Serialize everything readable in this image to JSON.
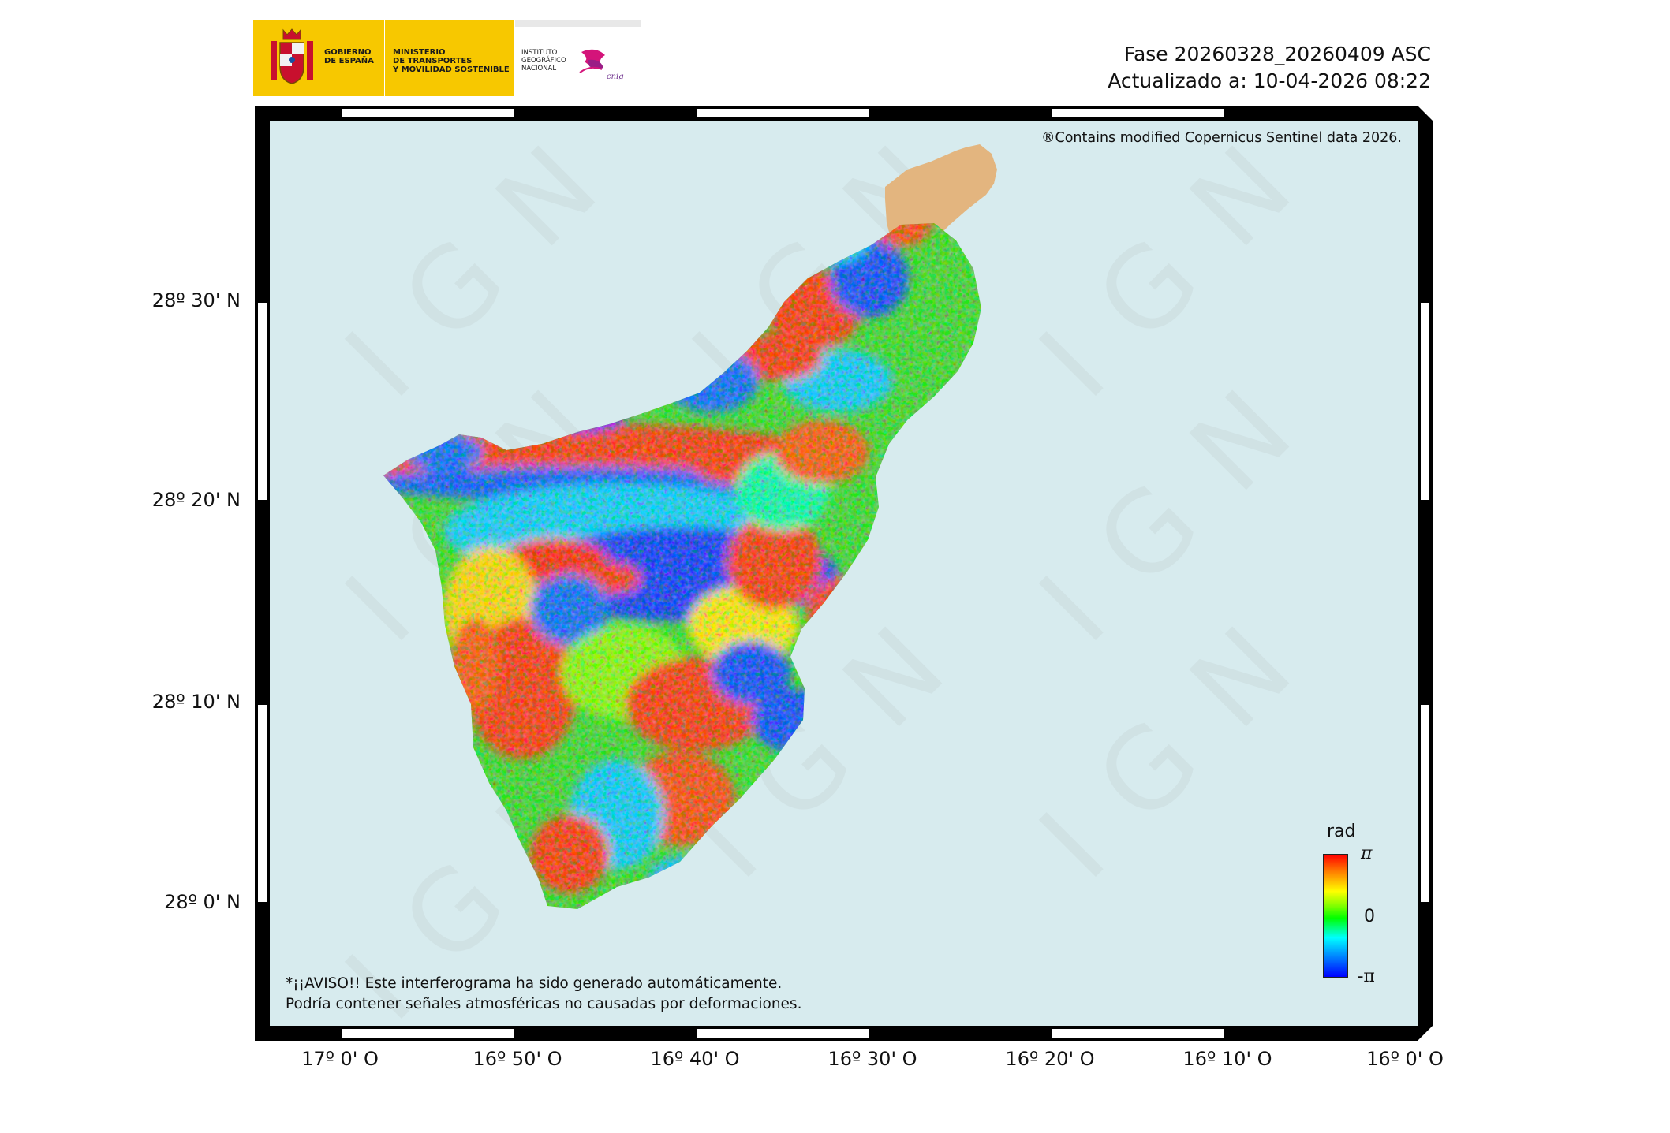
{
  "header": {
    "logo_gov_text": "GOBIERNO\nDE ESPAÑA",
    "logo_ministry_text": "MINISTERIO\nDE TRANSPORTES\nY MOVILIDAD SOSTENIBLE",
    "logo_ign_text": "INSTITUTO\nGEOGRÁFICO\nNACIONAL",
    "logo_cnig_text": "cnig",
    "phase": "Fase 20260328_20260409 ASC",
    "updated": "Actualizado a: 10-04-2026 08:22"
  },
  "map": {
    "copyright": "®Contains modified Copernicus Sentinel data 2026.",
    "warning_line1": "*¡¡AVISO!! Este interferograma ha sido generado automáticamente.",
    "warning_line2": "Podría contener señales atmosféricas no causadas por deformaciones.",
    "watermark": "IGN",
    "ocean_color": "#d7ebee",
    "masked_area_color": "#e3b57f"
  },
  "legend": {
    "unit": "rad",
    "max_label": "π",
    "mid_label": "0",
    "min_label": "-π",
    "colors": [
      "#ff0000",
      "#ffff00",
      "#00ff00",
      "#00ffff",
      "#0000ff"
    ]
  },
  "axes": {
    "latitude_labels": [
      "28º 30' N",
      "28º 20' N",
      "28º 10' N",
      "28º 0' N"
    ],
    "longitude_labels": [
      "17º 0' O",
      "16º 50' O",
      "16º 40' O",
      "16º 30' O",
      "16º 20' O",
      "16º 10' O",
      "16º 0' O"
    ]
  }
}
